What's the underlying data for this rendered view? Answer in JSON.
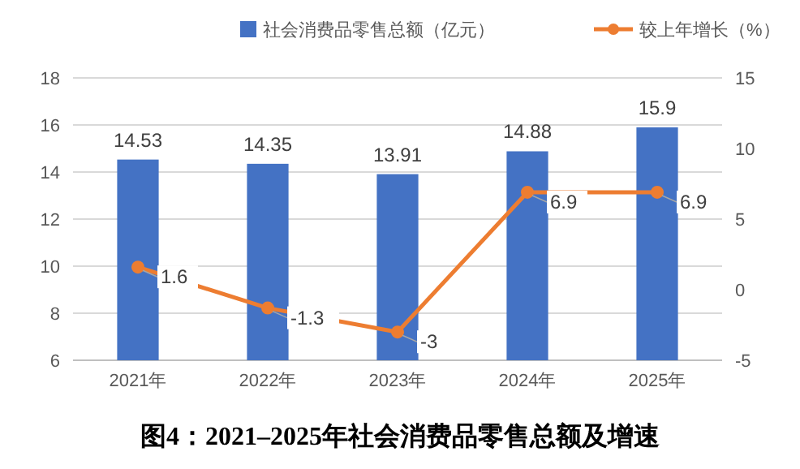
{
  "chart_data": {
    "type": "bar",
    "title": "图4：2021–2025年社会消费品零售总额及增速",
    "categories": [
      "2021年",
      "2022年",
      "2023年",
      "2024年",
      "2025年"
    ],
    "series": [
      {
        "name": "社会消费品零售总额（亿元）",
        "color": "#4472c4",
        "values": [
          14.53,
          14.35,
          13.91,
          14.88,
          15.9
        ]
      },
      {
        "name": "较上年增长（%）",
        "type": "line",
        "axis": "y2",
        "color": "#ed7d31",
        "marker": "circle",
        "values": [
          1.6,
          -1.3,
          -3,
          6.9,
          6.9
        ]
      }
    ],
    "ylim": [
      6,
      18
    ],
    "yticks": [
      6,
      8,
      10,
      12,
      14,
      16,
      18
    ],
    "y2lim": [
      -5,
      15
    ],
    "y2ticks": [
      -5,
      0,
      5,
      10,
      15
    ],
    "grid": "y",
    "legend": "top",
    "data_labels": true
  }
}
